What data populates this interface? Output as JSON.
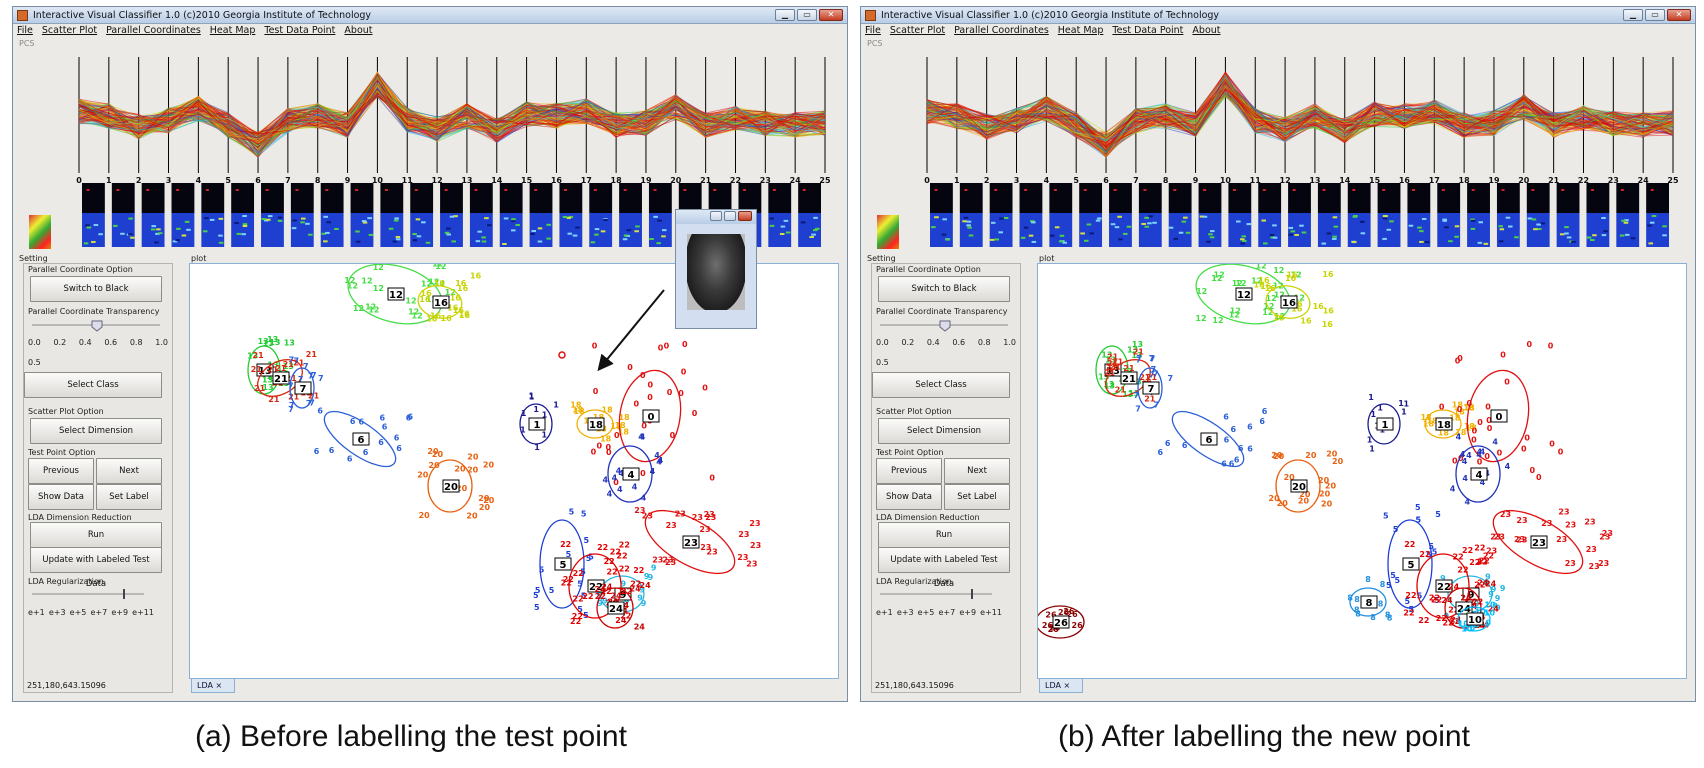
{
  "windows": [
    {
      "id": "a",
      "title": "Interactive Visual Classifier 1.0 (c)2010 Georgia Institute of Technology",
      "caption": "(a) Before labelling the test point",
      "coord_readout": "251,180,643.15096",
      "show_popup": true
    },
    {
      "id": "b",
      "title": "Interactive Visual Classifier 1.0 (c)2010 Georgia Institute of Technology",
      "caption": "(b) After labelling the new point",
      "coord_readout": "251,180,643.15096",
      "show_popup": false
    }
  ],
  "menu": [
    "File",
    "Scatter Plot",
    "Parallel Coordinates",
    "Heat Map",
    "Test Data Point",
    "About"
  ],
  "pcs_label": "PCS",
  "axis_numbers": [
    "0",
    "1",
    "2",
    "3",
    "4",
    "5",
    "6",
    "7",
    "8",
    "9",
    "10",
    "11",
    "12",
    "13",
    "14",
    "15",
    "16",
    "17",
    "18",
    "19",
    "20",
    "21",
    "22",
    "23",
    "24",
    "25"
  ],
  "setting_label": "Setting",
  "plot_label": "plot",
  "panel": {
    "pc_option": "Parallel Coordinate Option",
    "switch_to_black": "Switch to Black",
    "pc_transparency": "Parallel Coordinate Transparency",
    "transparency_ticks": [
      "0.0",
      "0.2",
      "0.4",
      "0.6",
      "0.8",
      "1.0"
    ],
    "transparency_value": "0.5",
    "select_class": "Select Class",
    "scatter_option": "Scatter Plot Option",
    "select_dimension": "Select Dimension",
    "test_point_option": "Test Point Option",
    "previous": "Previous",
    "next": "Next",
    "show_data": "Show Data",
    "set_label": "Set Label",
    "lda_reduction": "LDA Dimension Reduction",
    "run": "Run",
    "update": "Update with Labeled Test Data",
    "lda_regularization": "LDA Regularization",
    "reg_ticks": [
      "e+1",
      "e+3",
      "e+5",
      "e+7",
      "e+9",
      "e+11"
    ]
  },
  "tab_label": "LDA",
  "colors": {
    "c0": "#e01010",
    "c1": "#1a1a8c",
    "c4": "#2233bb",
    "c5": "#1d3fd6",
    "c6": "#2a5fd8",
    "c12": "#44dd44",
    "c13": "#22cc33",
    "c16": "#c8d400",
    "c18": "#f0b000",
    "c20": "#e86010",
    "c21": "#d82810",
    "c22": "#e00000",
    "c23": "#e01010",
    "c24": "#cc0000",
    "c8": "#1f8fe0",
    "c9": "#23b5e0",
    "c26": "#8b0000",
    "c10": "#00bfff"
  }
}
